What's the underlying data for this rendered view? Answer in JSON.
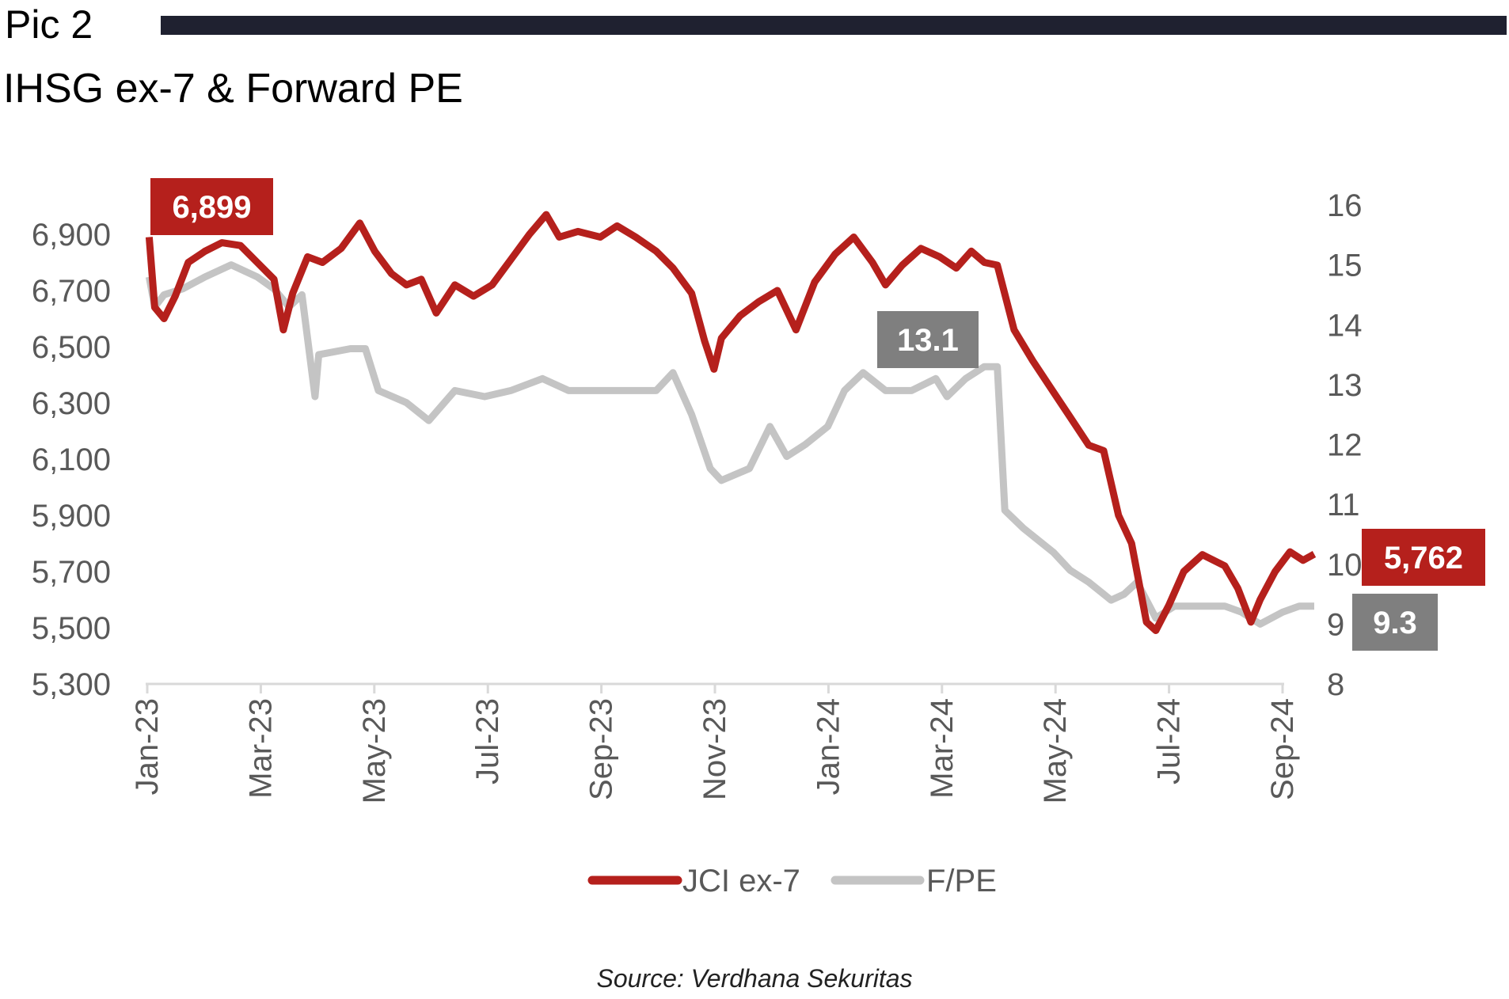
{
  "header": {
    "pic_label": "Pic 2",
    "title": "IHSG ex-7 & Forward PE"
  },
  "source": "Source: Verdhana Sekuritas",
  "colors": {
    "jci": "#b5201c",
    "fpe": "#c4c4c4",
    "callout_gray": "#7f7f7f",
    "axis_text": "#595959",
    "rule": "#1f2130"
  },
  "chart_data": {
    "type": "line",
    "title": "IHSG ex-7 & Forward PE",
    "x_ticks": [
      "Jan-23",
      "Mar-23",
      "May-23",
      "Jul-23",
      "Sep-23",
      "Nov-23",
      "Jan-24",
      "Mar-24",
      "May-24",
      "Jul-24",
      "Sep-24"
    ],
    "y_left": {
      "ticks": [
        "6,900",
        "6,700",
        "6,500",
        "6,300",
        "6,100",
        "5,900",
        "5,700",
        "5,500",
        "5,300"
      ],
      "range": [
        5300,
        7000
      ]
    },
    "y_right": {
      "ticks": [
        "16",
        "15",
        "14",
        "13",
        "12",
        "11",
        "10",
        "9",
        "8"
      ],
      "range": [
        8,
        16
      ]
    },
    "legend_position": "bottom",
    "series": [
      {
        "name": "JCI ex-7",
        "axis": "left",
        "points": [
          [
            "2023-01-02",
            6890
          ],
          [
            "2023-01-05",
            6640
          ],
          [
            "2023-01-10",
            6600
          ],
          [
            "2023-01-16",
            6680
          ],
          [
            "2023-01-23",
            6800
          ],
          [
            "2023-02-01",
            6840
          ],
          [
            "2023-02-10",
            6870
          ],
          [
            "2023-02-20",
            6860
          ],
          [
            "2023-03-01",
            6800
          ],
          [
            "2023-03-10",
            6740
          ],
          [
            "2023-03-15",
            6560
          ],
          [
            "2023-03-20",
            6690
          ],
          [
            "2023-03-28",
            6820
          ],
          [
            "2023-04-05",
            6800
          ],
          [
            "2023-04-15",
            6850
          ],
          [
            "2023-04-25",
            6940
          ],
          [
            "2023-05-03",
            6840
          ],
          [
            "2023-05-12",
            6760
          ],
          [
            "2023-05-20",
            6720
          ],
          [
            "2023-05-28",
            6740
          ],
          [
            "2023-06-05",
            6620
          ],
          [
            "2023-06-15",
            6720
          ],
          [
            "2023-06-25",
            6680
          ],
          [
            "2023-07-05",
            6720
          ],
          [
            "2023-07-15",
            6810
          ],
          [
            "2023-07-25",
            6900
          ],
          [
            "2023-08-03",
            6970
          ],
          [
            "2023-08-10",
            6890
          ],
          [
            "2023-08-20",
            6910
          ],
          [
            "2023-09-01",
            6890
          ],
          [
            "2023-09-10",
            6930
          ],
          [
            "2023-09-20",
            6890
          ],
          [
            "2023-10-01",
            6840
          ],
          [
            "2023-10-10",
            6780
          ],
          [
            "2023-10-20",
            6690
          ],
          [
            "2023-10-27",
            6520
          ],
          [
            "2023-11-01",
            6420
          ],
          [
            "2023-11-05",
            6530
          ],
          [
            "2023-11-15",
            6610
          ],
          [
            "2023-11-25",
            6660
          ],
          [
            "2023-12-05",
            6700
          ],
          [
            "2023-12-15",
            6560
          ],
          [
            "2023-12-25",
            6730
          ],
          [
            "2024-01-05",
            6830
          ],
          [
            "2024-01-15",
            6890
          ],
          [
            "2024-01-25",
            6800
          ],
          [
            "2024-02-01",
            6720
          ],
          [
            "2024-02-10",
            6790
          ],
          [
            "2024-02-20",
            6850
          ],
          [
            "2024-03-01",
            6820
          ],
          [
            "2024-03-10",
            6780
          ],
          [
            "2024-03-18",
            6840
          ],
          [
            "2024-03-25",
            6800
          ],
          [
            "2024-04-01",
            6790
          ],
          [
            "2024-04-10",
            6560
          ],
          [
            "2024-04-20",
            6450
          ],
          [
            "2024-04-30",
            6350
          ],
          [
            "2024-05-10",
            6250
          ],
          [
            "2024-05-20",
            6150
          ],
          [
            "2024-05-28",
            6130
          ],
          [
            "2024-06-05",
            5900
          ],
          [
            "2024-06-12",
            5800
          ],
          [
            "2024-06-20",
            5520
          ],
          [
            "2024-06-25",
            5490
          ],
          [
            "2024-07-02",
            5580
          ],
          [
            "2024-07-10",
            5700
          ],
          [
            "2024-07-20",
            5760
          ],
          [
            "2024-08-01",
            5720
          ],
          [
            "2024-08-08",
            5640
          ],
          [
            "2024-08-15",
            5520
          ],
          [
            "2024-08-20",
            5600
          ],
          [
            "2024-08-28",
            5700
          ],
          [
            "2024-09-05",
            5770
          ],
          [
            "2024-09-12",
            5740
          ],
          [
            "2024-09-18",
            5762
          ]
        ]
      },
      {
        "name": "F/PE",
        "axis": "right",
        "points": [
          [
            "2023-01-02",
            14.8
          ],
          [
            "2023-01-05",
            14.3
          ],
          [
            "2023-01-10",
            14.5
          ],
          [
            "2023-01-20",
            14.6
          ],
          [
            "2023-02-01",
            14.8
          ],
          [
            "2023-02-15",
            15.0
          ],
          [
            "2023-03-01",
            14.8
          ],
          [
            "2023-03-10",
            14.6
          ],
          [
            "2023-03-18",
            14.3
          ],
          [
            "2023-03-25",
            14.5
          ],
          [
            "2023-04-01",
            12.8
          ],
          [
            "2023-04-03",
            13.5
          ],
          [
            "2023-04-20",
            13.6
          ],
          [
            "2023-04-28",
            13.6
          ],
          [
            "2023-05-05",
            12.9
          ],
          [
            "2023-05-20",
            12.7
          ],
          [
            "2023-06-01",
            12.4
          ],
          [
            "2023-06-15",
            12.9
          ],
          [
            "2023-07-01",
            12.8
          ],
          [
            "2023-07-15",
            12.9
          ],
          [
            "2023-08-01",
            13.1
          ],
          [
            "2023-08-15",
            12.9
          ],
          [
            "2023-09-01",
            12.9
          ],
          [
            "2023-09-15",
            12.9
          ],
          [
            "2023-10-01",
            12.9
          ],
          [
            "2023-10-10",
            13.2
          ],
          [
            "2023-10-20",
            12.5
          ],
          [
            "2023-10-30",
            11.6
          ],
          [
            "2023-11-05",
            11.4
          ],
          [
            "2023-11-20",
            11.6
          ],
          [
            "2023-12-01",
            12.3
          ],
          [
            "2023-12-10",
            11.8
          ],
          [
            "2023-12-20",
            12.0
          ],
          [
            "2024-01-01",
            12.3
          ],
          [
            "2024-01-10",
            12.9
          ],
          [
            "2024-01-20",
            13.2
          ],
          [
            "2024-02-01",
            12.9
          ],
          [
            "2024-02-15",
            12.9
          ],
          [
            "2024-02-28",
            13.1
          ],
          [
            "2024-03-05",
            12.8
          ],
          [
            "2024-03-15",
            13.1
          ],
          [
            "2024-03-25",
            13.3
          ],
          [
            "2024-04-01",
            13.3
          ],
          [
            "2024-04-05",
            10.9
          ],
          [
            "2024-04-15",
            10.6
          ],
          [
            "2024-05-01",
            10.2
          ],
          [
            "2024-05-10",
            9.9
          ],
          [
            "2024-05-20",
            9.7
          ],
          [
            "2024-06-01",
            9.4
          ],
          [
            "2024-06-08",
            9.5
          ],
          [
            "2024-06-15",
            9.7
          ],
          [
            "2024-06-25",
            9.1
          ],
          [
            "2024-07-05",
            9.3
          ],
          [
            "2024-07-20",
            9.3
          ],
          [
            "2024-08-01",
            9.3
          ],
          [
            "2024-08-10",
            9.2
          ],
          [
            "2024-08-20",
            9.0
          ],
          [
            "2024-09-01",
            9.2
          ],
          [
            "2024-09-10",
            9.3
          ],
          [
            "2024-09-18",
            9.3
          ]
        ]
      }
    ],
    "callouts": [
      {
        "label": "6,899",
        "series": "JCI ex-7",
        "style": "red"
      },
      {
        "label": "13.1",
        "series": "F/PE",
        "style": "gray"
      },
      {
        "label": "5,762",
        "series": "JCI ex-7",
        "style": "red"
      },
      {
        "label": "9.3",
        "series": "F/PE",
        "style": "gray"
      }
    ]
  }
}
